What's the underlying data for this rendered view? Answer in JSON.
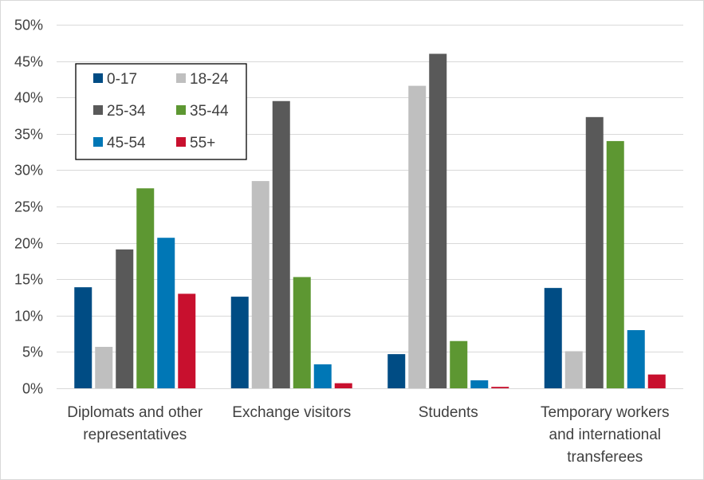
{
  "chart_data": {
    "type": "bar",
    "title": "",
    "xlabel": "",
    "ylabel": "",
    "ylim": [
      0,
      50
    ],
    "yticks": [
      0,
      5,
      10,
      15,
      20,
      25,
      30,
      35,
      40,
      45,
      50
    ],
    "ytick_labels": [
      "0%",
      "5%",
      "10%",
      "15%",
      "20%",
      "25%",
      "30%",
      "35%",
      "40%",
      "45%",
      "50%"
    ],
    "grid": true,
    "legend_position": "top-left",
    "categories": [
      "Diplomats and other representatives",
      "Exchange visitors",
      "Students",
      "Temporary workers and international transferees"
    ],
    "category_label_lines": [
      [
        "Diplomats and other",
        "representatives"
      ],
      [
        "Exchange visitors"
      ],
      [
        "Students"
      ],
      [
        "Temporary workers",
        "and international",
        "transferees"
      ]
    ],
    "series": [
      {
        "name": "0-17",
        "color": "#004c84",
        "values": [
          13.9,
          12.6,
          4.7,
          13.8
        ]
      },
      {
        "name": "18-24",
        "color": "#bfbfbf",
        "values": [
          5.7,
          28.5,
          41.6,
          5.1
        ]
      },
      {
        "name": "25-34",
        "color": "#595959",
        "values": [
          19.1,
          39.5,
          46.0,
          37.3
        ]
      },
      {
        "name": "35-44",
        "color": "#5d9732",
        "values": [
          27.5,
          15.3,
          6.5,
          34.0
        ]
      },
      {
        "name": "45-54",
        "color": "#0077b6",
        "values": [
          20.7,
          3.3,
          1.1,
          8.0
        ]
      },
      {
        "name": "55+",
        "color": "#c8102e",
        "values": [
          13.0,
          0.7,
          0.2,
          1.9
        ]
      }
    ]
  }
}
